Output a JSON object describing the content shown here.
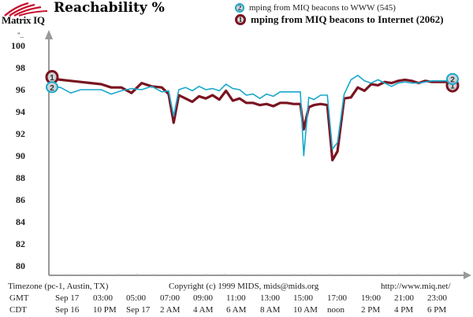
{
  "header": {
    "logo_text": "Matrix IQ",
    "title": "Reachability %"
  },
  "legend": [
    {
      "badge": "2",
      "label": "mping from MIQ beacons to WWW (545)",
      "color": "#1aa7cc"
    },
    {
      "badge": "1",
      "label": "mping from MIQ beacons to Internet (2062)",
      "color": "#7a1420"
    }
  ],
  "chart_data": {
    "type": "line",
    "title": "Reachability %",
    "xlabel": "",
    "ylabel": "%",
    "ylim": [
      80,
      100
    ],
    "yticks": [
      "100",
      "98",
      "96",
      "94",
      "92",
      "90",
      "88",
      "86",
      "84",
      "82",
      "80"
    ],
    "grid": false,
    "legend_position": "top-right",
    "x_range_hours_gmt": [
      0,
      24
    ],
    "series": [
      {
        "name": "mping from MIQ beacons to WWW (545)",
        "id": "2",
        "color": "#1aa7cc",
        "x": [
          0,
          0.6,
          1.2,
          1.8,
          2.4,
          3.0,
          3.6,
          4.2,
          4.8,
          5.4,
          6.0,
          6.6,
          7.0,
          7.3,
          7.6,
          8.0,
          8.4,
          8.8,
          9.2,
          9.6,
          10.0,
          10.4,
          10.8,
          11.2,
          11.6,
          12.0,
          12.4,
          12.8,
          13.2,
          13.6,
          14.0,
          14.4,
          14.8,
          15.0,
          15.3,
          15.6,
          16.0,
          16.4,
          16.7,
          17.0,
          17.4,
          17.8,
          18.2,
          18.6,
          19.0,
          19.4,
          19.8,
          20.2,
          20.6,
          21.0,
          21.4,
          21.8,
          22.2,
          22.6,
          23.0,
          23.5,
          24.0
        ],
        "values": [
          96.3,
          96.2,
          95.7,
          96.0,
          96.0,
          96.0,
          95.6,
          95.9,
          96.1,
          96.0,
          96.3,
          95.8,
          95.9,
          93.6,
          96.0,
          96.2,
          95.9,
          96.3,
          96.0,
          96.1,
          95.9,
          96.5,
          96.1,
          96.0,
          95.5,
          95.6,
          95.2,
          95.6,
          95.4,
          95.8,
          95.8,
          95.8,
          95.8,
          90.0,
          95.3,
          95.1,
          95.5,
          95.5,
          90.6,
          91.2,
          95.6,
          96.9,
          97.3,
          96.8,
          96.6,
          96.9,
          96.6,
          96.3,
          96.6,
          96.7,
          96.6,
          96.6,
          96.7,
          96.8,
          96.8,
          96.8,
          96.9
        ]
      },
      {
        "name": "mping from MIQ beacons to Internet (2062)",
        "id": "1",
        "color": "#7a1420",
        "x": [
          0,
          0.6,
          1.2,
          1.8,
          2.4,
          3.0,
          3.6,
          4.2,
          4.8,
          5.4,
          6.0,
          6.6,
          7.0,
          7.3,
          7.6,
          8.0,
          8.4,
          8.8,
          9.2,
          9.6,
          10.0,
          10.4,
          10.8,
          11.2,
          11.6,
          12.0,
          12.4,
          12.8,
          13.2,
          13.6,
          14.0,
          14.4,
          14.8,
          15.0,
          15.3,
          15.6,
          16.0,
          16.4,
          16.7,
          17.0,
          17.4,
          17.8,
          18.2,
          18.6,
          19.0,
          19.4,
          19.8,
          20.2,
          20.6,
          21.0,
          21.4,
          21.8,
          22.2,
          22.6,
          23.0,
          23.5,
          24.0
        ],
        "values": [
          97.0,
          96.9,
          96.8,
          96.7,
          96.6,
          96.5,
          96.2,
          96.2,
          95.7,
          96.6,
          96.3,
          96.2,
          95.6,
          93.0,
          95.5,
          95.2,
          94.9,
          95.4,
          95.2,
          95.5,
          95.1,
          95.9,
          95.0,
          95.2,
          94.8,
          94.8,
          94.6,
          94.7,
          94.5,
          94.8,
          94.8,
          94.7,
          94.7,
          92.4,
          94.4,
          94.6,
          94.7,
          94.6,
          89.6,
          90.4,
          95.2,
          95.3,
          96.2,
          95.9,
          96.5,
          96.4,
          96.7,
          96.6,
          96.8,
          96.9,
          96.8,
          96.6,
          96.8,
          96.7,
          96.7,
          96.7,
          96.6
        ]
      }
    ]
  },
  "footer": {
    "timezone": "Timezone (pc-1, Austin, TX)",
    "copyright": "Copyright (c) 1999 MIDS, mids@mids.org",
    "url": "http://www.miq.net/",
    "gmt_label": "GMT",
    "cdt_label": "CDT",
    "gmt_ticks": [
      "Sep 17",
      "03:00",
      "05:00",
      "07:00",
      "09:00",
      "11:00",
      "13:00",
      "15:00",
      "17:00",
      "19:00",
      "21:00",
      "23:00"
    ],
    "cdt_ticks": [
      "Sep 16",
      "10 PM",
      "Sep 17",
      "2 AM",
      "4 AM",
      "6 AM",
      "8 AM",
      "10 AM",
      "noon",
      "2 PM",
      "4 PM",
      "6 PM"
    ]
  }
}
